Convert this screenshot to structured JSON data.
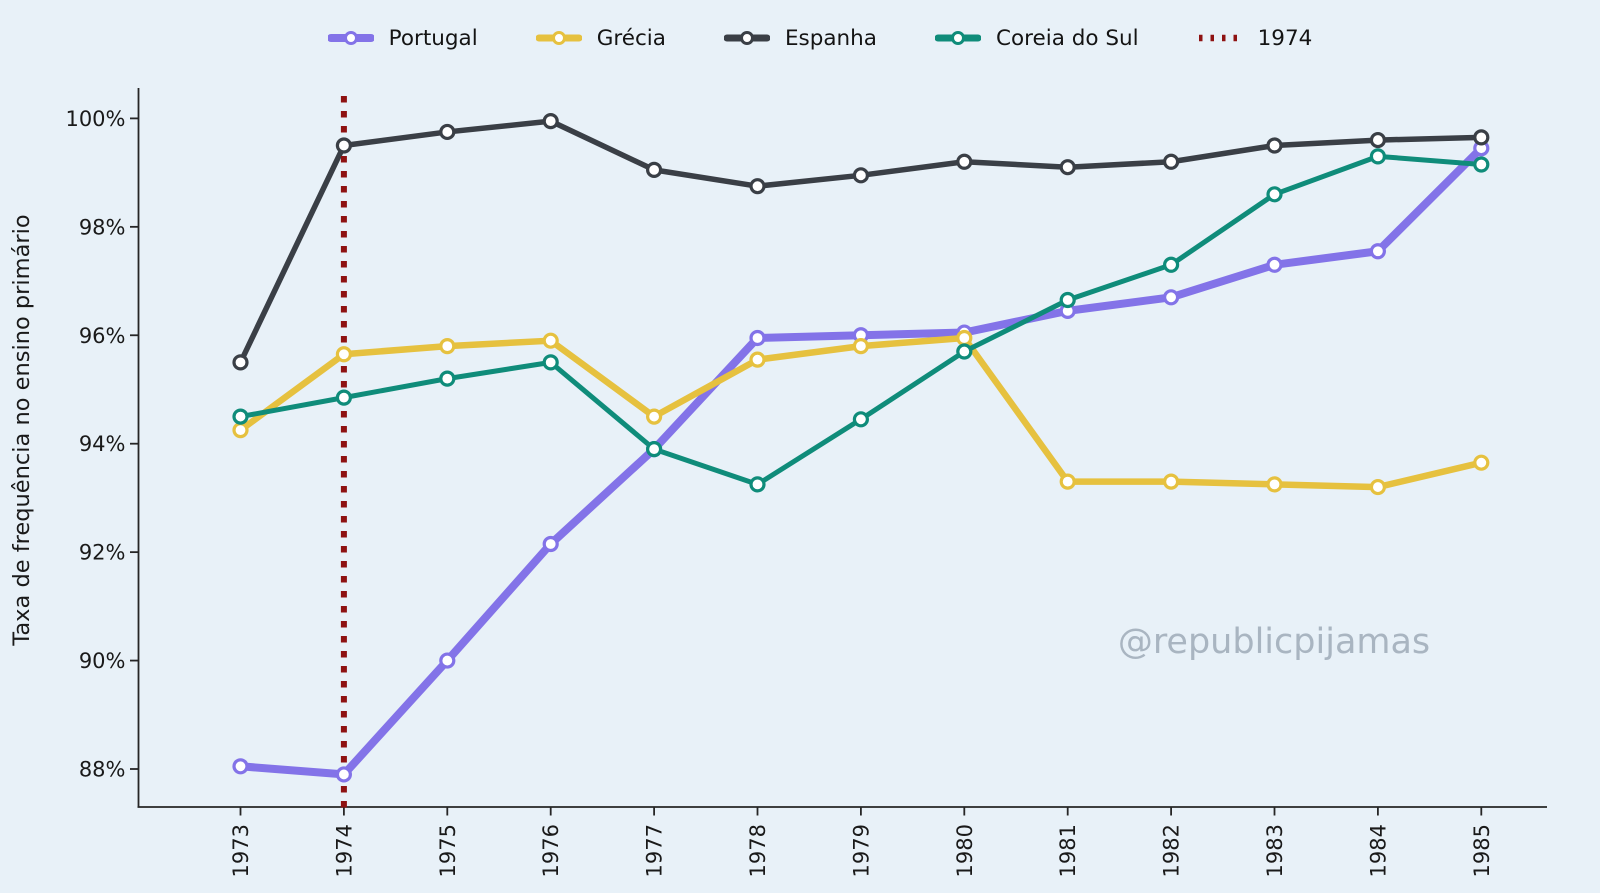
{
  "chart_data": {
    "type": "line",
    "title": "",
    "xlabel": "",
    "ylabel": "Taxa de frequência no ensino primário",
    "categories": [
      "1973",
      "1974",
      "1975",
      "1976",
      "1977",
      "1978",
      "1979",
      "1980",
      "1981",
      "1982",
      "1983",
      "1984",
      "1985"
    ],
    "ytick_labels": [
      "88%",
      "90%",
      "92%",
      "94%",
      "96%",
      "98%",
      "100%"
    ],
    "yticks": [
      88,
      90,
      92,
      94,
      96,
      98,
      100
    ],
    "ylim": [
      87.3,
      100.4
    ],
    "grid": false,
    "legend_position": "top",
    "background_color": "#e8f1f8",
    "axis_color": "#262626",
    "tick_label_color": "#1a1a1a",
    "series": [
      {
        "name": "Portugal",
        "color": "#8373e8",
        "values": [
          88.05,
          87.9,
          90.0,
          92.15,
          93.9,
          95.95,
          96.0,
          96.05,
          96.45,
          96.7,
          97.3,
          97.55,
          99.45
        ]
      },
      {
        "name": "Grécia",
        "color": "#e6c13f",
        "values": [
          94.25,
          95.65,
          95.8,
          95.9,
          94.5,
          95.55,
          95.8,
          95.95,
          93.3,
          93.3,
          93.25,
          93.2,
          93.65
        ]
      },
      {
        "name": "Espanha",
        "color": "#3a3f46",
        "values": [
          95.5,
          99.5,
          99.75,
          99.95,
          99.05,
          98.75,
          98.95,
          99.2,
          99.1,
          99.2,
          99.5,
          99.6,
          99.65
        ]
      },
      {
        "name": "Coreia do Sul",
        "color": "#0f8c7a",
        "values": [
          94.5,
          94.85,
          95.2,
          95.5,
          93.9,
          93.25,
          94.45,
          95.7,
          96.65,
          97.3,
          98.6,
          99.3,
          99.15
        ]
      }
    ],
    "vline": {
      "label": "1974",
      "x": "1974",
      "color": "#8e1212",
      "style": "dotted"
    },
    "watermark": {
      "text": "@republicpijamas",
      "color": "#a9b5c1"
    }
  }
}
